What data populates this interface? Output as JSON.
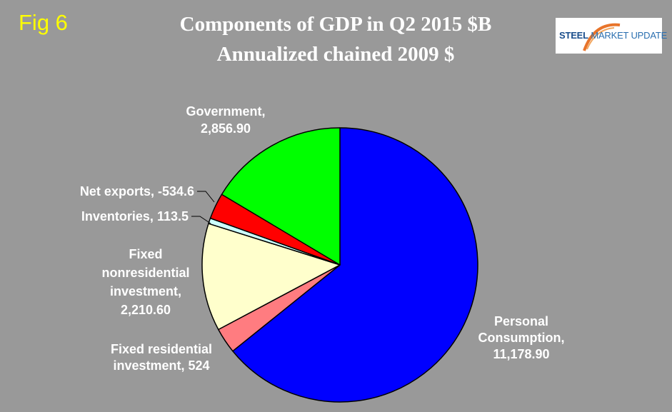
{
  "figure": {
    "label": "Fig 6"
  },
  "logo": {
    "text_strong": "STEEL",
    "text_light": "MARKET UPDATE"
  },
  "colors": {
    "background": "#999999",
    "fig_label": "#ffff00",
    "title": "#ffffff",
    "labels": "#ffffff"
  },
  "chart_data": {
    "type": "pie",
    "title": "Components of GDP in Q2 2015 $B",
    "subtitle": "Annualized chained 2009 $",
    "slices": [
      {
        "name": "Personal Consumption",
        "value": 11178.9,
        "color": "#0000ff",
        "label_lines": [
          "Personal",
          "Consumption,",
          "11,178.90"
        ]
      },
      {
        "name": "Fixed residential investment",
        "value": 524,
        "color": "#ff7c80",
        "label_lines": [
          "Fixed residential",
          "investment, 524"
        ]
      },
      {
        "name": "Fixed nonresidential investment",
        "value": 2210.6,
        "color": "#ffffcc",
        "label_lines": [
          "Fixed",
          "nonresidential",
          "investment,",
          "2,210.60"
        ]
      },
      {
        "name": "Inventories",
        "value": 113.5,
        "color": "#ccffff",
        "label_lines": [
          "Inventories, 113.5"
        ]
      },
      {
        "name": "Net exports",
        "value": -534.6,
        "color": "#ff0000",
        "label_lines": [
          "Net exports, -534.6"
        ]
      },
      {
        "name": "Government",
        "value": 2856.9,
        "color": "#00ff00",
        "label_lines": [
          "Government,",
          "2,856.90"
        ]
      }
    ],
    "start": "12 o'clock",
    "direction": "clockwise",
    "legend": "none"
  }
}
